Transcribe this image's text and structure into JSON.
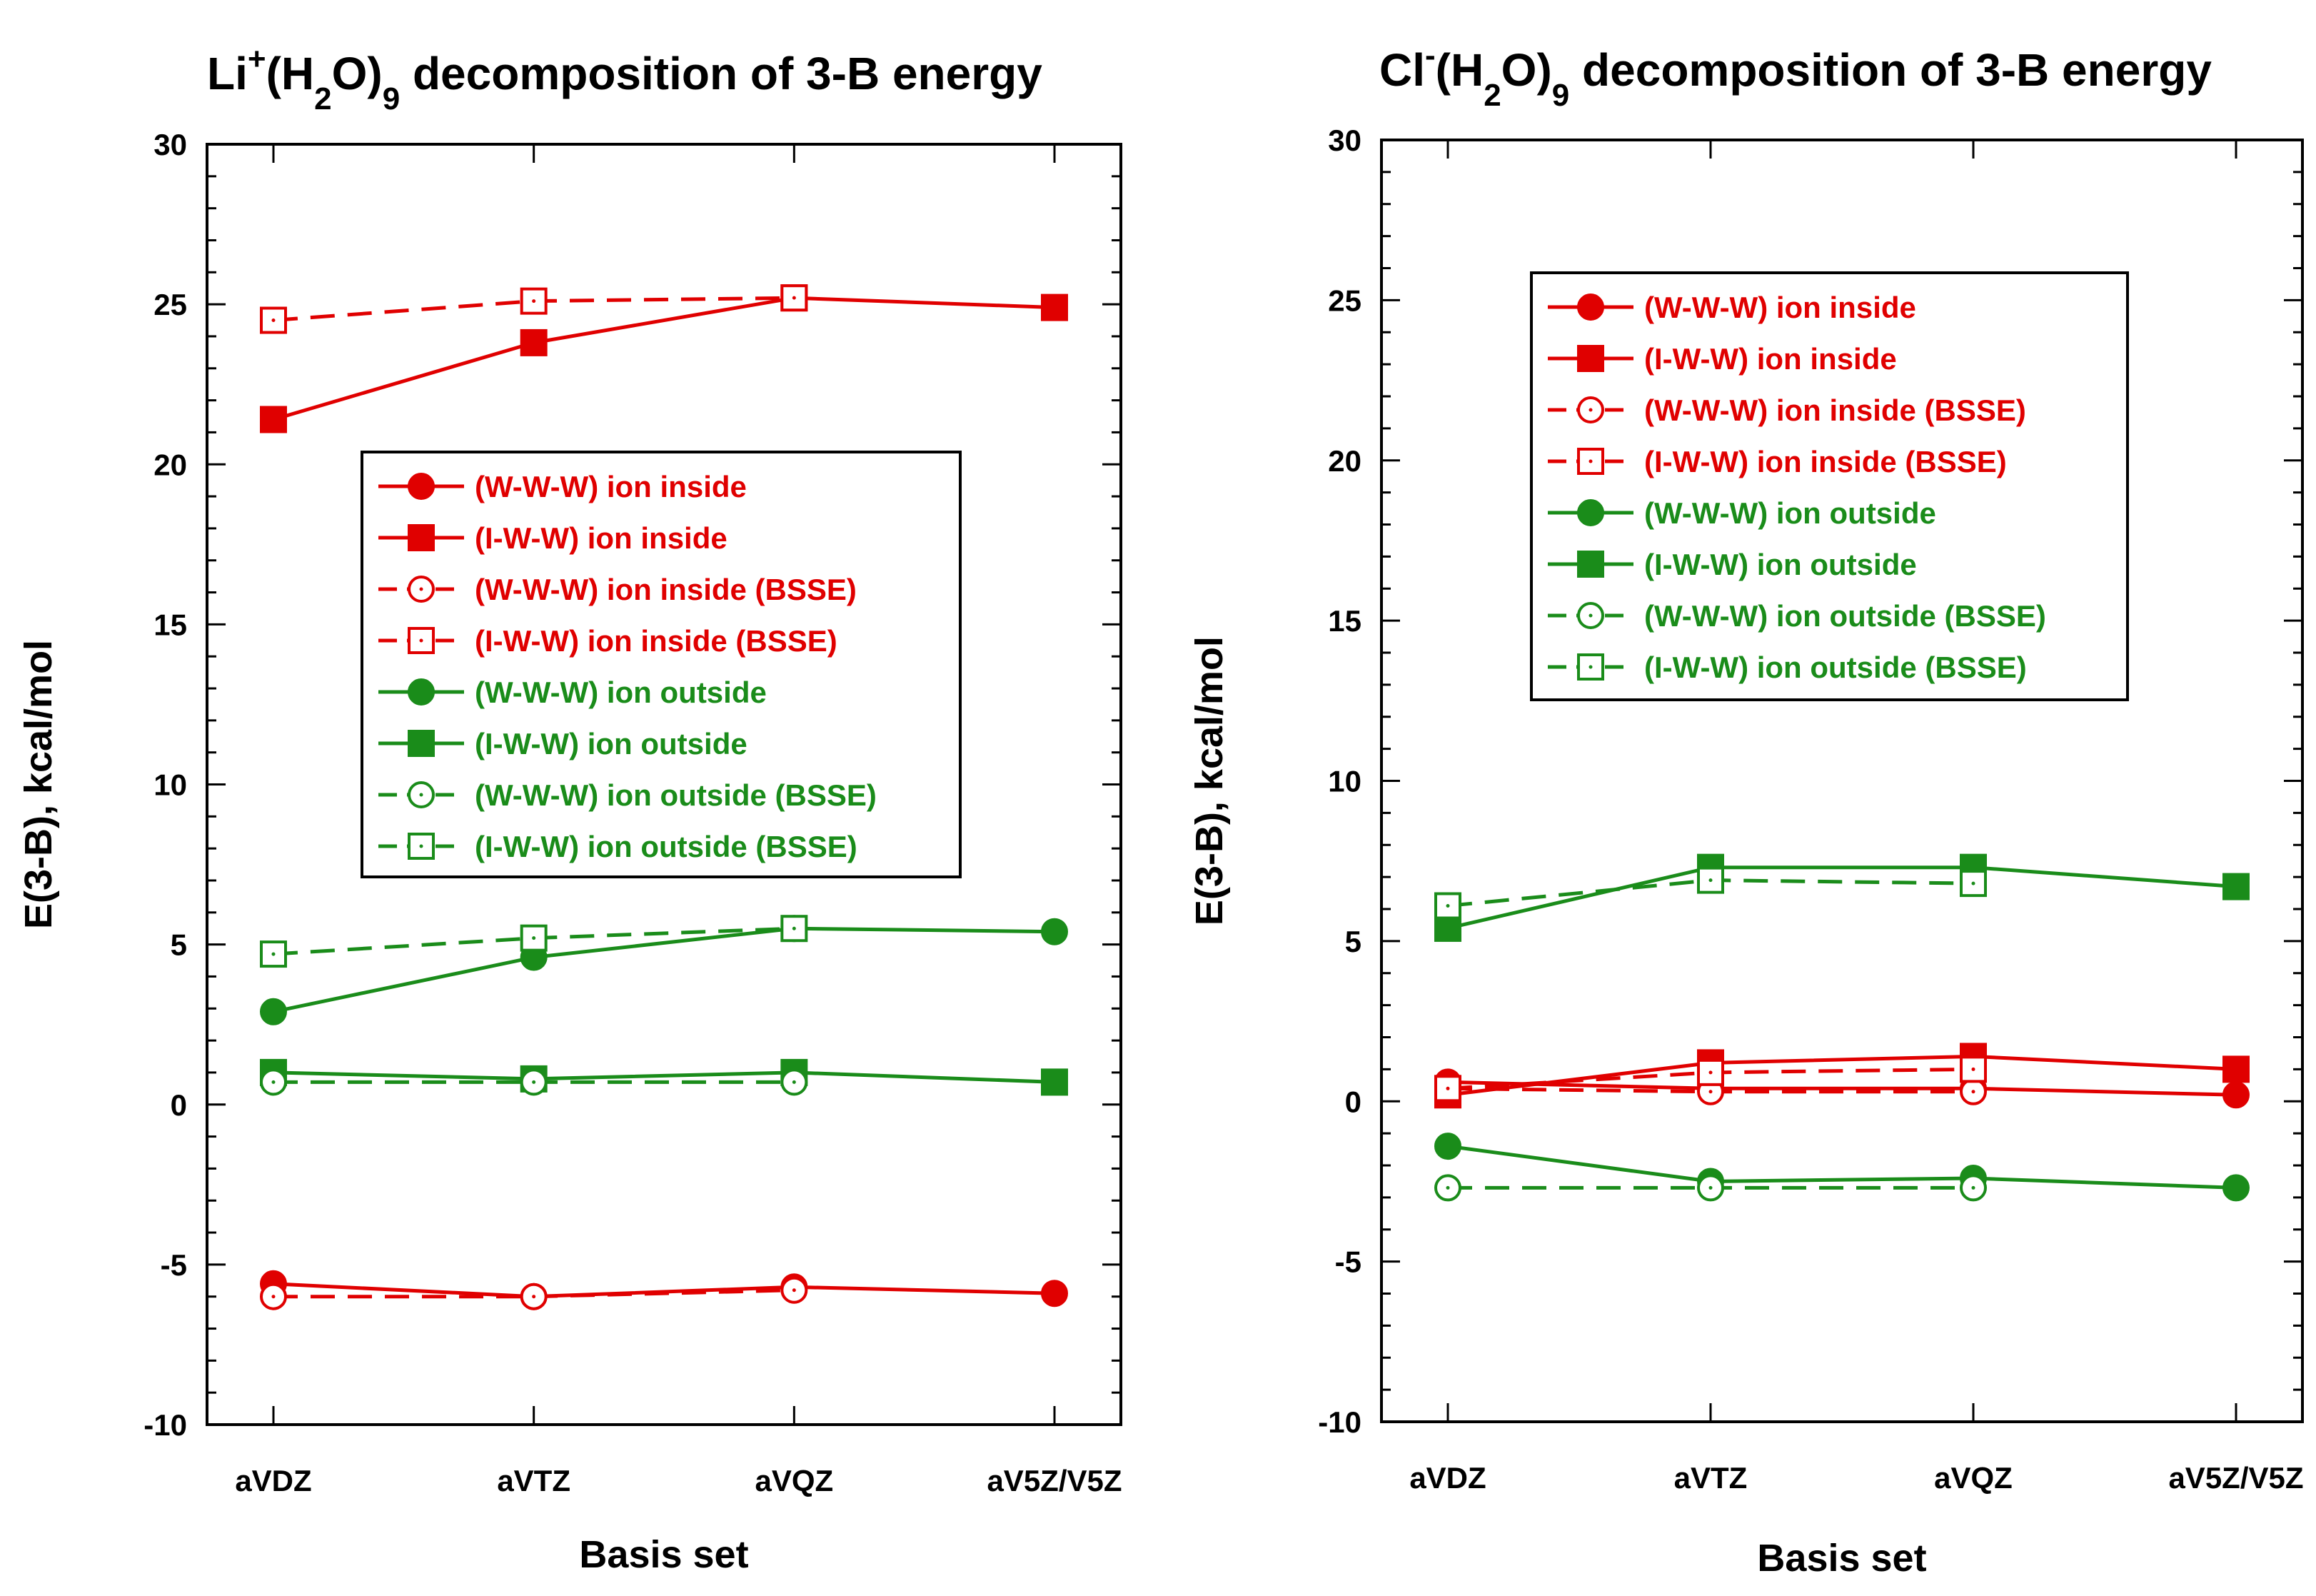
{
  "chart_data": [
    {
      "type": "line",
      "title": {
        "parts": [
          {
            "text": "Li",
            "shift": "none"
          },
          {
            "text": "+",
            "shift": "super"
          },
          {
            "text": "(H",
            "shift": "none"
          },
          {
            "text": "2",
            "shift": "sub"
          },
          {
            "text": "O)",
            "shift": "none"
          },
          {
            "text": "9",
            "shift": "sub"
          },
          {
            "text": " decomposition of 3-B energy",
            "shift": "none"
          }
        ]
      },
      "xlabel": "Basis set",
      "ylabel": "E(3-B), kcal/mol",
      "categories": [
        "aVDZ",
        "aVTZ",
        "aVQZ",
        "aV5Z/V5Z"
      ],
      "ylim": [
        -10,
        30
      ],
      "yticks": [
        "-10",
        "-5",
        "0",
        "5",
        "10",
        "15",
        "20",
        "25",
        "30"
      ],
      "legend_position": "center",
      "series": [
        {
          "name": "(W-W-W) ion inside",
          "color": "#e00000",
          "marker": "circle",
          "filled": true,
          "dashed": false,
          "values": [
            -5.6,
            -6.0,
            -5.7,
            -5.9
          ]
        },
        {
          "name": "(I-W-W) ion inside",
          "color": "#e00000",
          "marker": "square",
          "filled": true,
          "dashed": false,
          "values": [
            21.4,
            23.8,
            25.2,
            24.9
          ]
        },
        {
          "name": "(W-W-W) ion inside (BSSE)",
          "color": "#e00000",
          "marker": "circle",
          "filled": false,
          "dashed": true,
          "values": [
            -6.0,
            -6.0,
            -5.8,
            null
          ]
        },
        {
          "name": "(I-W-W) ion inside (BSSE)",
          "color": "#e00000",
          "marker": "square",
          "filled": false,
          "dashed": true,
          "values": [
            24.5,
            25.1,
            25.2,
            null
          ]
        },
        {
          "name": "(W-W-W) ion outside",
          "color": "#1a8c1a",
          "marker": "circle",
          "filled": true,
          "dashed": false,
          "values": [
            2.9,
            4.6,
            5.5,
            5.4
          ]
        },
        {
          "name": "(I-W-W) ion outside",
          "color": "#1a8c1a",
          "marker": "square",
          "filled": true,
          "dashed": false,
          "values": [
            1.0,
            0.8,
            1.0,
            0.7
          ]
        },
        {
          "name": "(W-W-W) ion outside (BSSE)",
          "color": "#1a8c1a",
          "marker": "circle",
          "filled": false,
          "dashed": true,
          "values": [
            0.7,
            0.7,
            0.7,
            null
          ]
        },
        {
          "name": "(I-W-W) ion outside (BSSE)",
          "color": "#1a8c1a",
          "marker": "square",
          "filled": false,
          "dashed": true,
          "values": [
            4.7,
            5.2,
            5.5,
            null
          ]
        }
      ]
    },
    {
      "type": "line",
      "title": {
        "parts": [
          {
            "text": "Cl",
            "shift": "none"
          },
          {
            "text": "-",
            "shift": "super"
          },
          {
            "text": "(H",
            "shift": "none"
          },
          {
            "text": "2",
            "shift": "sub"
          },
          {
            "text": "O)",
            "shift": "none"
          },
          {
            "text": "9",
            "shift": "sub"
          },
          {
            "text": " decomposition of 3-B energy",
            "shift": "none"
          }
        ]
      },
      "xlabel": "Basis set",
      "ylabel": "E(3-B), kcal/mol",
      "categories": [
        "aVDZ",
        "aVTZ",
        "aVQZ",
        "aV5Z/V5Z"
      ],
      "ylim": [
        -10,
        30
      ],
      "yticks": [
        "-10",
        "-5",
        "0",
        "5",
        "10",
        "15",
        "20",
        "25",
        "30"
      ],
      "legend_position": "upper-center",
      "series": [
        {
          "name": "(W-W-W) ion inside",
          "color": "#e00000",
          "marker": "circle",
          "filled": true,
          "dashed": false,
          "values": [
            0.6,
            0.4,
            0.4,
            0.2
          ]
        },
        {
          "name": "(I-W-W) ion inside",
          "color": "#e00000",
          "marker": "square",
          "filled": true,
          "dashed": false,
          "values": [
            0.2,
            1.2,
            1.4,
            1.0
          ]
        },
        {
          "name": "(W-W-W) ion inside (BSSE)",
          "color": "#e00000",
          "marker": "circle",
          "filled": false,
          "dashed": true,
          "values": [
            0.4,
            0.3,
            0.3,
            null
          ]
        },
        {
          "name": "(I-W-W) ion inside (BSSE)",
          "color": "#e00000",
          "marker": "square",
          "filled": false,
          "dashed": true,
          "values": [
            0.4,
            0.9,
            1.0,
            null
          ]
        },
        {
          "name": "(W-W-W) ion outside",
          "color": "#1a8c1a",
          "marker": "circle",
          "filled": true,
          "dashed": false,
          "values": [
            -1.4,
            -2.5,
            -2.4,
            -2.7
          ]
        },
        {
          "name": "(I-W-W) ion outside",
          "color": "#1a8c1a",
          "marker": "square",
          "filled": true,
          "dashed": false,
          "values": [
            5.4,
            7.3,
            7.3,
            6.7
          ]
        },
        {
          "name": "(W-W-W) ion outside (BSSE)",
          "color": "#1a8c1a",
          "marker": "circle",
          "filled": false,
          "dashed": true,
          "values": [
            -2.7,
            -2.7,
            -2.7,
            null
          ]
        },
        {
          "name": "(I-W-W) ion outside (BSSE)",
          "color": "#1a8c1a",
          "marker": "square",
          "filled": false,
          "dashed": true,
          "values": [
            6.1,
            6.9,
            6.8,
            null
          ]
        }
      ]
    }
  ]
}
